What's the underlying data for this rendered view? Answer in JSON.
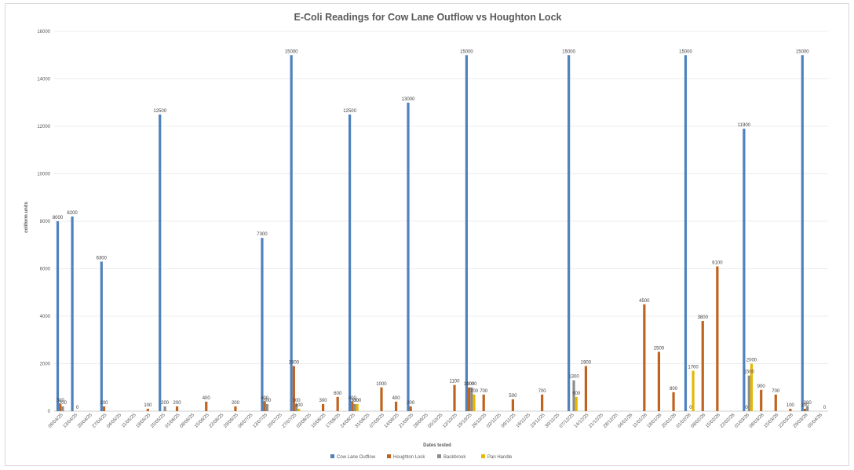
{
  "chart_data": {
    "type": "bar",
    "title": "E-Coli Readings for Cow Lane Outflow vs Houghton Lock",
    "xlabel": "Dates tested",
    "ylabel": "coliform units",
    "ylim": [
      0,
      16000
    ],
    "yticks": [
      "0",
      "2000",
      "4000",
      "6000",
      "8000",
      "10000",
      "12000",
      "14000",
      "16000"
    ],
    "grid": true,
    "legend_position": "bottom",
    "categories": [
      "06/04/25",
      "13/04/25",
      "20/04/25",
      "27/04/25",
      "04/05/25",
      "11/05/25",
      "18/05/25",
      "25/05/25",
      "01/06/25",
      "08/06/25",
      "15/06/25",
      "22/06/25",
      "29/06/25",
      "06/07/25",
      "13/07/25",
      "20/07/25",
      "27/07/25",
      "03/08/25",
      "10/08/25",
      "17/08/25",
      "24/08/25",
      "31/08/25",
      "07/09/25",
      "14/09/25",
      "21/09/25",
      "28/09/25",
      "05/10/25",
      "12/10/25",
      "19/10/25",
      "26/10/25",
      "02/11/25",
      "09/11/25",
      "16/11/25",
      "23/11/25",
      "30/11/25",
      "07/12/25",
      "14/12/25",
      "21/12/25",
      "28/12/25",
      "04/01/26",
      "11/01/26",
      "18/01/26",
      "25/01/26",
      "01/02/26",
      "08/02/26",
      "15/02/26",
      "22/02/26",
      "01/03/26",
      "08/03/26",
      "15/03/26",
      "22/03/26",
      "29/03/26",
      "05/04/26"
    ],
    "series": [
      {
        "name": "Cow Lane Outflow",
        "color": "#4f81bd",
        "points": [
          {
            "x": 0,
            "y": 8000
          },
          {
            "x": 1,
            "y": 8200
          },
          {
            "x": 3,
            "y": 6300
          },
          {
            "x": 7,
            "y": 12500
          },
          {
            "x": 14,
            "y": 7300
          },
          {
            "x": 16,
            "y": 15000
          },
          {
            "x": 20,
            "y": 12500
          },
          {
            "x": 24,
            "y": 13000
          },
          {
            "x": 28,
            "y": 15000
          },
          {
            "x": 35,
            "y": 15000
          },
          {
            "x": 43,
            "y": 15000
          },
          {
            "x": 47,
            "y": 11900
          },
          {
            "x": 51,
            "y": 15000
          }
        ]
      },
      {
        "name": "Houghton Lock",
        "color": "#c0631e",
        "points": [
          {
            "x": 0,
            "y": 300
          },
          {
            "x": 3,
            "y": 200
          },
          {
            "x": 6,
            "y": 100
          },
          {
            "x": 8,
            "y": 200
          },
          {
            "x": 10,
            "y": 400
          },
          {
            "x": 12,
            "y": 200
          },
          {
            "x": 14,
            "y": 400
          },
          {
            "x": 16,
            "y": 1900
          },
          {
            "x": 18,
            "y": 300
          },
          {
            "x": 19,
            "y": 600
          },
          {
            "x": 20,
            "y": 400
          },
          {
            "x": 22,
            "y": 1000
          },
          {
            "x": 23,
            "y": 400
          },
          {
            "x": 24,
            "y": 200
          },
          {
            "x": 27,
            "y": 1100
          },
          {
            "x": 28,
            "y": 1000
          },
          {
            "x": 29,
            "y": 700
          },
          {
            "x": 31,
            "y": 500
          },
          {
            "x": 33,
            "y": 700
          },
          {
            "x": 36,
            "y": 1900
          },
          {
            "x": 40,
            "y": 4500
          },
          {
            "x": 41,
            "y": 2500
          },
          {
            "x": 42,
            "y": 800
          },
          {
            "x": 44,
            "y": 3800
          },
          {
            "x": 45,
            "y": 6100
          },
          {
            "x": 47,
            "y": 0
          },
          {
            "x": 48,
            "y": 900
          },
          {
            "x": 49,
            "y": 700
          },
          {
            "x": 50,
            "y": 100
          },
          {
            "x": 51,
            "y": 100
          }
        ]
      },
      {
        "name": "Backbrook",
        "color": "#8c8c8c",
        "points": [
          {
            "x": 0,
            "y": 200
          },
          {
            "x": 1,
            "y": 0
          },
          {
            "x": 7,
            "y": 200
          },
          {
            "x": 14,
            "y": 300
          },
          {
            "x": 16,
            "y": 300
          },
          {
            "x": 20,
            "y": 300
          },
          {
            "x": 28,
            "y": 1000
          },
          {
            "x": 35,
            "y": 1300
          },
          {
            "x": 43,
            "y": 0
          },
          {
            "x": 47,
            "y": 1500
          },
          {
            "x": 51,
            "y": 200
          }
        ]
      },
      {
        "name": "Pan Handle",
        "color": "#e6b800",
        "points": [
          {
            "x": 16,
            "y": 100
          },
          {
            "x": 20,
            "y": 300
          },
          {
            "x": 28,
            "y": 700
          },
          {
            "x": 35,
            "y": 600
          },
          {
            "x": 43,
            "y": 1700
          },
          {
            "x": 47,
            "y": 2000
          },
          {
            "x": 52,
            "y": 0
          }
        ]
      }
    ]
  }
}
